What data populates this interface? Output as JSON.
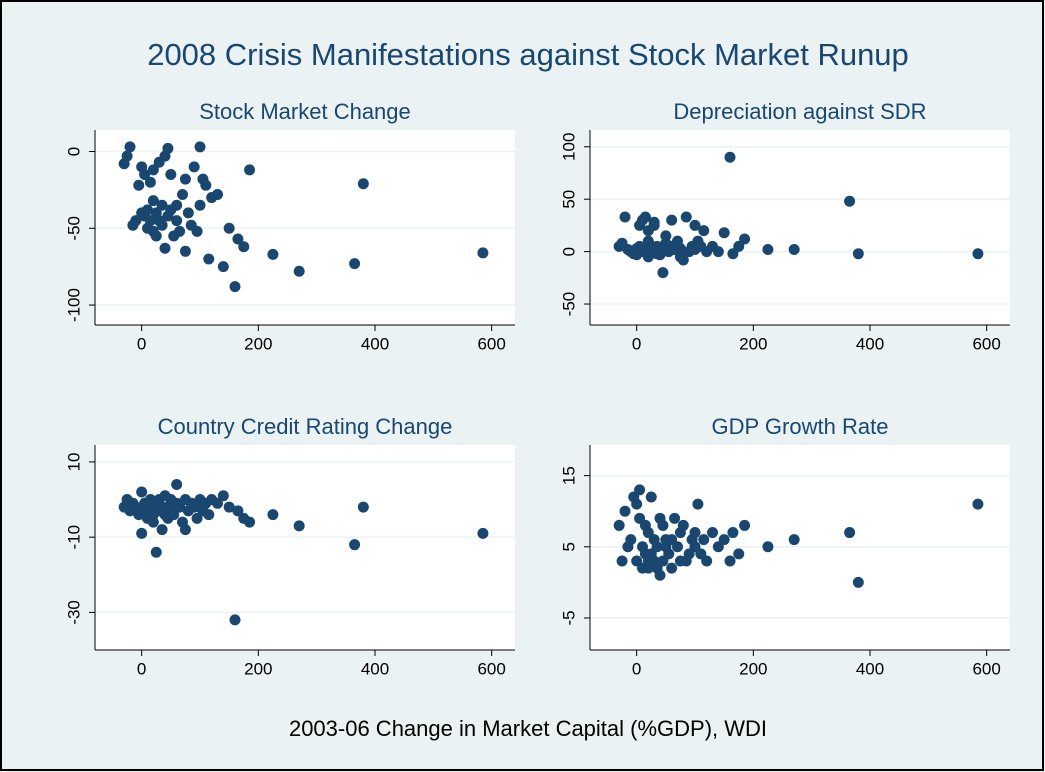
{
  "title": "2008 Crisis Manifestations against Stock Market Runup",
  "xlabel": "2003-06 Change in Market Capital (%GDP), WDI",
  "chart_data": [
    {
      "type": "scatter",
      "title": "Stock Market Change",
      "color": "#1a476f",
      "x": [
        -30,
        -25,
        -20,
        -15,
        -10,
        -5,
        0,
        0,
        5,
        5,
        10,
        10,
        15,
        15,
        20,
        20,
        20,
        25,
        25,
        30,
        30,
        35,
        35,
        40,
        40,
        45,
        45,
        50,
        50,
        55,
        60,
        60,
        65,
        70,
        75,
        75,
        80,
        85,
        90,
        95,
        100,
        100,
        105,
        110,
        115,
        120,
        130,
        140,
        150,
        160,
        165,
        175,
        185,
        225,
        270,
        365,
        380,
        585
      ],
      "y": [
        -8,
        -3,
        3,
        -48,
        -45,
        -22,
        -40,
        -10,
        -15,
        -42,
        -50,
        -38,
        -20,
        -45,
        -12,
        -52,
        -32,
        -55,
        -40,
        -7,
        -45,
        -48,
        -35,
        -3,
        -63,
        2,
        -42,
        -38,
        -15,
        -55,
        -35,
        -45,
        -52,
        -28,
        -18,
        -65,
        -40,
        -48,
        -10,
        -52,
        -35,
        3,
        -18,
        -22,
        -70,
        -30,
        -28,
        -75,
        -50,
        -88,
        -57,
        -62,
        -12,
        -67,
        -78,
        -73,
        -21,
        -66
      ],
      "xlim": [
        -80,
        640
      ],
      "ylim": [
        -113,
        14
      ],
      "xticks": [
        0,
        200,
        400,
        600
      ],
      "yticks": [
        0,
        -50,
        -100
      ],
      "grid": true
    },
    {
      "type": "scatter",
      "title": "Depreciation against SDR",
      "color": "#1a476f",
      "x": [
        -30,
        -25,
        -20,
        -15,
        -10,
        -5,
        0,
        0,
        5,
        5,
        10,
        10,
        15,
        15,
        20,
        20,
        20,
        25,
        25,
        30,
        30,
        35,
        35,
        40,
        40,
        45,
        45,
        50,
        50,
        55,
        60,
        60,
        65,
        70,
        75,
        75,
        80,
        85,
        90,
        95,
        100,
        100,
        105,
        110,
        115,
        120,
        130,
        140,
        150,
        160,
        165,
        175,
        185,
        225,
        270,
        365,
        380,
        585
      ],
      "y": [
        5,
        8,
        33,
        2,
        0,
        -2,
        3,
        -3,
        25,
        5,
        30,
        0,
        33,
        2,
        20,
        -5,
        10,
        5,
        0,
        25,
        28,
        -2,
        5,
        -3,
        0,
        2,
        -20,
        8,
        15,
        0,
        30,
        5,
        2,
        10,
        -5,
        3,
        -8,
        33,
        0,
        5,
        25,
        2,
        10,
        5,
        20,
        0,
        5,
        0,
        18,
        90,
        -2,
        5,
        12,
        2,
        2,
        48,
        -2,
        -2
      ],
      "xlim": [
        -80,
        640
      ],
      "ylim": [
        -70,
        116
      ],
      "xticks": [
        0,
        200,
        400,
        600
      ],
      "yticks": [
        100,
        50,
        0,
        -50
      ],
      "grid": true
    },
    {
      "type": "scatter",
      "title": "Country Credit Rating Change",
      "color": "#1a476f",
      "x": [
        -30,
        -25,
        -20,
        -15,
        -10,
        -5,
        0,
        0,
        5,
        5,
        10,
        10,
        15,
        15,
        20,
        20,
        20,
        25,
        25,
        30,
        30,
        35,
        35,
        40,
        40,
        45,
        45,
        50,
        50,
        55,
        60,
        60,
        65,
        70,
        75,
        75,
        80,
        85,
        90,
        95,
        100,
        100,
        105,
        110,
        115,
        120,
        130,
        140,
        150,
        160,
        165,
        175,
        185,
        225,
        270,
        365,
        380,
        585
      ],
      "y": [
        -2,
        0,
        -3,
        -1,
        -2,
        -4,
        -9,
        2,
        -3,
        -1,
        -5,
        -2,
        -3,
        0,
        -2,
        -6,
        -4,
        -14,
        -1,
        0,
        -3,
        -8,
        -2,
        -4,
        1,
        -5,
        -2,
        0,
        -3,
        -4,
        -1,
        4,
        -2,
        -6,
        0,
        -8,
        -3,
        -1,
        -2,
        -5,
        -2,
        0,
        -3,
        -1,
        -4,
        0,
        -1,
        1,
        -2,
        -32,
        -3,
        -5,
        -6,
        -4,
        -7,
        -12,
        -2,
        -9
      ],
      "xlim": [
        -80,
        640
      ],
      "ylim": [
        -40,
        14.5
      ],
      "xticks": [
        0,
        200,
        400,
        600
      ],
      "yticks": [
        10,
        -10,
        -30
      ],
      "grid": true
    },
    {
      "type": "scatter",
      "title": "GDP Growth Rate",
      "color": "#1a476f",
      "x": [
        -30,
        -25,
        -20,
        -15,
        -10,
        -5,
        0,
        0,
        5,
        5,
        10,
        10,
        15,
        15,
        20,
        20,
        20,
        25,
        25,
        30,
        30,
        35,
        35,
        40,
        40,
        45,
        45,
        50,
        50,
        55,
        60,
        60,
        65,
        70,
        75,
        75,
        80,
        85,
        90,
        95,
        100,
        100,
        105,
        110,
        115,
        120,
        130,
        140,
        150,
        160,
        165,
        175,
        185,
        225,
        270,
        365,
        380,
        585
      ],
      "y": [
        8,
        3,
        10,
        5,
        6,
        12,
        11,
        3,
        9,
        13,
        5,
        2,
        4,
        8,
        3,
        7,
        2,
        4,
        12,
        6,
        3,
        2,
        5,
        9,
        1,
        8,
        3,
        5,
        6,
        4,
        2,
        6,
        9,
        5,
        3,
        7,
        8,
        3,
        4,
        6,
        5,
        7,
        11,
        4,
        6,
        3,
        7,
        5,
        6,
        3,
        7,
        4,
        8,
        5,
        6,
        7,
        0,
        11
      ],
      "xlim": [
        -80,
        640
      ],
      "ylim": [
        -9.5,
        19.3
      ],
      "xticks": [
        0,
        200,
        400,
        600
      ],
      "yticks": [
        15,
        5,
        -5
      ],
      "grid": true
    }
  ]
}
